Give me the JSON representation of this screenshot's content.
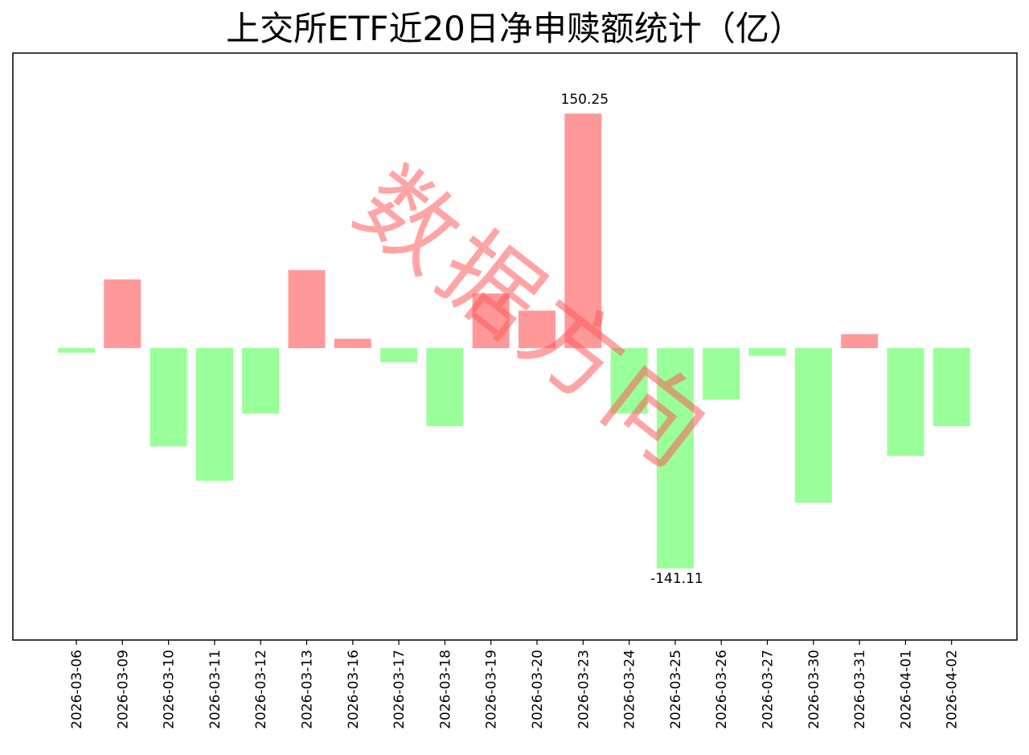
{
  "chart_data": {
    "type": "bar",
    "title": "上交所ETF近20日净申赎额统计（亿）",
    "xlabel": "",
    "ylabel": "",
    "categories": [
      "2026-03-06",
      "2026-03-09",
      "2026-03-10",
      "2026-03-11",
      "2026-03-12",
      "2026-03-13",
      "2026-03-16",
      "2026-03-17",
      "2026-03-18",
      "2026-03-19",
      "2026-03-20",
      "2026-03-23",
      "2026-03-24",
      "2026-03-25",
      "2026-03-26",
      "2026-03-27",
      "2026-03-30",
      "2026-03-31",
      "2026-04-01",
      "2026-04-02"
    ],
    "values": [
      -3,
      44,
      -63,
      -85,
      -42,
      50,
      6,
      -9,
      -50,
      35,
      24,
      150.25,
      -42,
      -141.11,
      -33,
      -5,
      -99,
      9,
      -69,
      -50
    ],
    "ylim": [
      -187,
      189
    ],
    "grid": false,
    "positive_color": "#ff9999",
    "negative_color": "#99ff99",
    "annotations": [
      {
        "category": "2026-03-23",
        "text": "150.25"
      },
      {
        "category": "2026-03-25",
        "text": "-141.11"
      }
    ]
  },
  "watermark": "数据方向",
  "watermark_color": "#ff5a5a"
}
